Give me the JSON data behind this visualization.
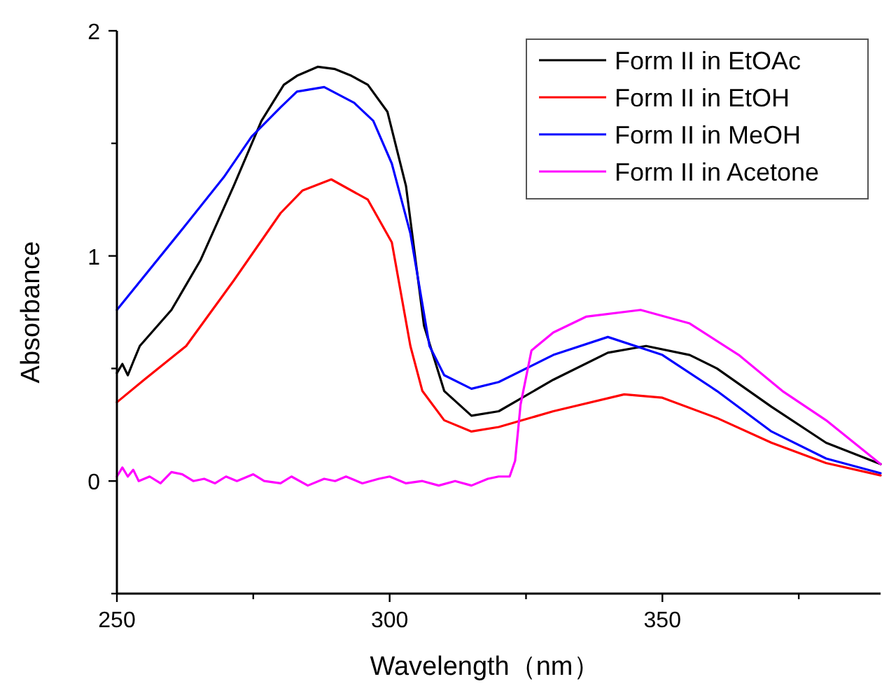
{
  "chart_data": {
    "type": "line",
    "xlabel": "Wavelength（nm）",
    "ylabel": "Absorbance",
    "xlim": [
      250,
      390
    ],
    "ylim": [
      -0.5,
      2
    ],
    "xticks": [
      250,
      {
        "value": 275,
        "label": null
      },
      300,
      {
        "value": 325,
        "label": null
      },
      350,
      {
        "value": 375,
        "label": null
      }
    ],
    "yticks": [
      {
        "value": -0.5,
        "label": null
      },
      0,
      {
        "value": 0.5,
        "label": null
      },
      1,
      {
        "value": 1.5,
        "label": null
      },
      2
    ],
    "grid": false,
    "legend": "top right",
    "marker": "none",
    "line_style": "solid",
    "series": [
      {
        "name": "Form II in EtOAc",
        "color": "#000000",
        "x": [
          250,
          251,
          252,
          253,
          254.2,
          260,
          265.3,
          271.4,
          276.5,
          280.6,
          283,
          286.8,
          290,
          293,
          296,
          299.6,
          303,
          306.3,
          310,
          315,
          320,
          330,
          340,
          347,
          355,
          360,
          370,
          380,
          390
        ],
        "values": [
          0.48,
          0.52,
          0.47,
          0.53,
          0.6,
          0.76,
          0.98,
          1.31,
          1.6,
          1.76,
          1.8,
          1.84,
          1.83,
          1.8,
          1.76,
          1.64,
          1.31,
          0.69,
          0.4,
          0.29,
          0.31,
          0.45,
          0.57,
          0.6,
          0.56,
          0.5,
          0.33,
          0.17,
          0.075
        ]
      },
      {
        "name": "Form II in EtOH",
        "color": "#ff0000",
        "x": [
          250,
          255,
          262.7,
          271.4,
          280,
          284,
          289.3,
          296,
          300.4,
          303.8,
          306,
          310,
          315,
          320,
          330,
          343,
          350,
          360,
          370,
          380,
          390
        ],
        "values": [
          0.35,
          0.45,
          0.6,
          0.89,
          1.19,
          1.29,
          1.34,
          1.25,
          1.06,
          0.6,
          0.4,
          0.27,
          0.22,
          0.24,
          0.31,
          0.385,
          0.37,
          0.28,
          0.17,
          0.08,
          0.025
        ]
      },
      {
        "name": "Form II in MeOH",
        "color": "#0000ff",
        "x": [
          250,
          262.7,
          269.6,
          274.7,
          280,
          283,
          288,
          293.5,
          297,
          300.4,
          303.8,
          307.3,
          310,
          315,
          320,
          330,
          340,
          350,
          360,
          370,
          380,
          390
        ],
        "values": [
          0.76,
          1.14,
          1.35,
          1.53,
          1.66,
          1.73,
          1.75,
          1.68,
          1.6,
          1.41,
          1.1,
          0.6,
          0.47,
          0.41,
          0.44,
          0.56,
          0.64,
          0.56,
          0.4,
          0.22,
          0.1,
          0.035
        ]
      },
      {
        "name": "Form II in Acetone",
        "color": "#ff00ff",
        "x": [
          250,
          251,
          252,
          253,
          254,
          256,
          258,
          260,
          262,
          264,
          266,
          268,
          270,
          272,
          275,
          277,
          280,
          282,
          285,
          288,
          290,
          292,
          295,
          298,
          300,
          303,
          306,
          309,
          312,
          315,
          318,
          320,
          322,
          323,
          324,
          326,
          330,
          336,
          346,
          355,
          364,
          372,
          380,
          390
        ],
        "values": [
          0.02,
          0.06,
          0.02,
          0.05,
          0.0,
          0.02,
          -0.01,
          0.04,
          0.03,
          0.0,
          0.01,
          -0.01,
          0.02,
          0.0,
          0.03,
          0.0,
          -0.01,
          0.02,
          -0.02,
          0.01,
          0.0,
          0.02,
          -0.01,
          0.01,
          0.02,
          -0.01,
          0.0,
          -0.02,
          0.0,
          -0.02,
          0.01,
          0.02,
          0.02,
          0.09,
          0.34,
          0.58,
          0.66,
          0.73,
          0.76,
          0.7,
          0.56,
          0.4,
          0.27,
          0.075
        ]
      }
    ]
  }
}
